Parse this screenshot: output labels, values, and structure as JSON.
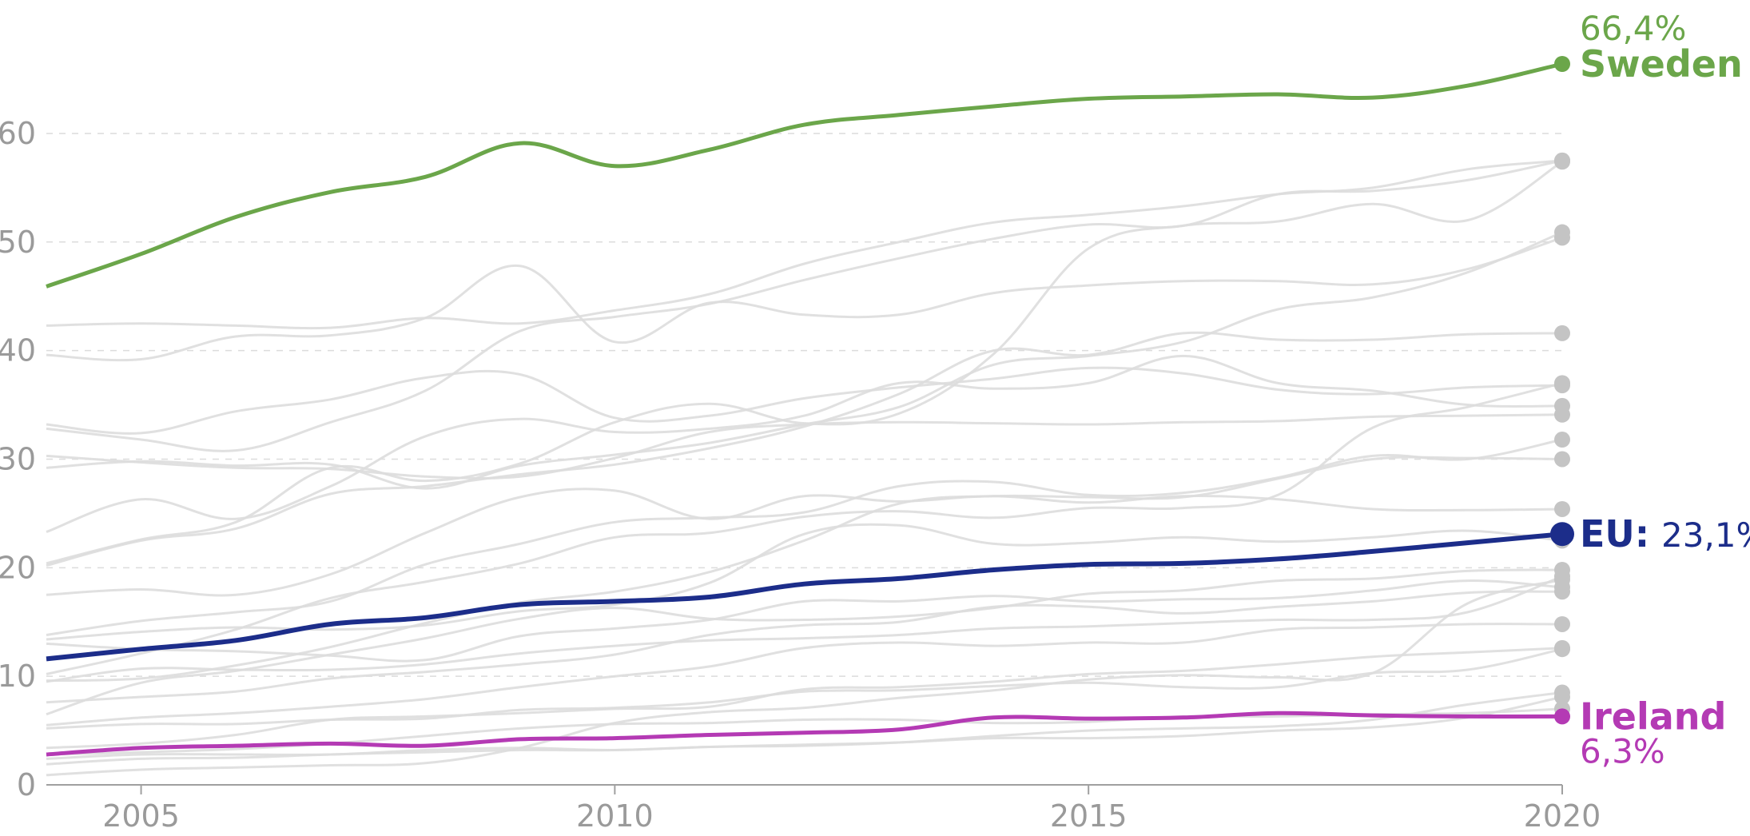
{
  "chart_data": {
    "type": "line",
    "title": "",
    "xlabel": "",
    "ylabel": "",
    "xlim": [
      2004,
      2020
    ],
    "ylim": [
      0,
      66.4
    ],
    "x_ticks": [
      2005,
      2010,
      2015,
      2020
    ],
    "x_tick_labels": [
      "2005",
      "2010",
      "2015",
      "2020"
    ],
    "y_ticks": [
      0,
      10,
      20,
      30,
      40,
      50,
      60
    ],
    "y_tick_labels": [
      "0",
      "10",
      "20",
      "30",
      "40",
      "50",
      "60"
    ],
    "grid": true,
    "years": [
      2004,
      2005,
      2006,
      2007,
      2008,
      2009,
      2010,
      2011,
      2012,
      2013,
      2014,
      2015,
      2016,
      2017,
      2018,
      2019,
      2020
    ],
    "highlight_series": [
      {
        "name": "Sweden",
        "color": "#6ba64a",
        "label": "Sweden",
        "value_label": "66,4%",
        "values": [
          45.9,
          48.9,
          52.3,
          54.6,
          56.0,
          59.1,
          57.0,
          58.5,
          60.8,
          61.7,
          62.5,
          63.2,
          63.4,
          63.6,
          63.3,
          64.4,
          66.4
        ]
      },
      {
        "name": "EU",
        "color": "#1c2d8a",
        "label": "EU:",
        "value_label": "23,1%",
        "values": [
          11.6,
          12.5,
          13.3,
          14.8,
          15.4,
          16.6,
          16.9,
          17.3,
          18.5,
          19.0,
          19.8,
          20.3,
          20.4,
          20.8,
          21.5,
          22.3,
          23.1
        ]
      },
      {
        "name": "Ireland",
        "color": "#b43ab4",
        "label": "Ireland",
        "value_label": "6,3%",
        "values": [
          2.8,
          3.4,
          3.6,
          3.8,
          3.6,
          4.2,
          4.3,
          4.6,
          4.8,
          5.1,
          6.2,
          6.1,
          6.2,
          6.6,
          6.4,
          6.3,
          6.3
        ]
      }
    ],
    "background_series": [
      {
        "values": [
          39.6,
          39.2,
          41.3,
          41.4,
          43.0,
          47.8,
          40.8,
          44.4,
          43.3,
          43.3,
          45.3,
          46.0,
          46.4,
          46.4,
          46.1,
          47.5,
          50.4
        ]
      },
      {
        "values": [
          42.3,
          42.5,
          42.3,
          42.1,
          43.0,
          42.5,
          43.7,
          45.2,
          48.0,
          50.0,
          51.8,
          52.5,
          53.3,
          54.4,
          55.0,
          56.7,
          57.5
        ]
      },
      {
        "values": [
          29.2,
          29.8,
          29.4,
          29.5,
          27.3,
          29.4,
          30.4,
          31.5,
          33.2,
          34.8,
          38.7,
          39.5,
          40.8,
          43.8,
          44.9,
          47.2,
          50.9
        ]
      },
      {
        "values": [
          20.4,
          22.6,
          24.2,
          29.2,
          28.0,
          29.6,
          33.4,
          35.1,
          33.3,
          34.2,
          39.7,
          49.4,
          51.5,
          51.9,
          53.5,
          52.0,
          57.4
        ]
      },
      {
        "values": [
          32.8,
          31.8,
          30.8,
          33.4,
          36.3,
          41.8,
          43.1,
          44.3,
          46.5,
          48.5,
          50.3,
          51.6,
          51.5,
          54.4,
          54.7,
          55.7,
          57.5
        ]
      },
      {
        "values": [
          33.2,
          32.4,
          34.4,
          35.5,
          37.5,
          37.8,
          33.8,
          34.0,
          35.6,
          36.6,
          37.4,
          38.4,
          37.9,
          36.4,
          36.0,
          36.6,
          36.8
        ]
      },
      {
        "values": [
          30.3,
          29.7,
          29.2,
          29.1,
          28.4,
          28.4,
          30.1,
          32.5,
          33.2,
          33.4,
          33.3,
          33.2,
          33.4,
          33.5,
          33.9,
          34.0,
          34.1
        ]
      },
      {
        "values": [
          23.3,
          26.3,
          24.5,
          27.5,
          32.1,
          33.7,
          32.5,
          32.8,
          34.0,
          37.0,
          36.5,
          37.0,
          39.5,
          37.0,
          36.3,
          35.0,
          34.9
        ]
      },
      {
        "values": [
          20.2,
          22.5,
          23.6,
          26.8,
          27.5,
          28.6,
          29.5,
          31.0,
          33.0,
          36.0,
          40.0,
          39.6,
          41.6,
          41.0,
          41.0,
          41.5,
          41.6
        ]
      },
      {
        "values": [
          17.5,
          18.0,
          17.5,
          19.4,
          23.2,
          26.5,
          27.1,
          24.5,
          26.6,
          26.1,
          26.6,
          26.0,
          26.6,
          26.3,
          25.4,
          25.3,
          25.4
        ]
      },
      {
        "values": [
          13.8,
          15.1,
          15.9,
          16.9,
          20.3,
          22.2,
          24.2,
          24.6,
          25.1,
          27.5,
          27.9,
          26.7,
          26.9,
          28.3,
          30.3,
          30.0,
          31.8
        ]
      },
      {
        "values": [
          10.2,
          12.1,
          14.3,
          17.2,
          18.7,
          20.4,
          22.8,
          23.2,
          24.7,
          25.2,
          24.6,
          25.5,
          25.5,
          26.7,
          32.9,
          34.8,
          37.0
        ]
      },
      {
        "values": [
          13.4,
          14.1,
          14.5,
          14.3,
          14.7,
          16.0,
          16.6,
          18.6,
          23.1,
          23.9,
          22.2,
          22.3,
          22.8,
          22.4,
          22.8,
          23.4,
          22.5
        ]
      },
      {
        "values": [
          6.5,
          9.4,
          10.5,
          12.0,
          13.5,
          15.3,
          16.3,
          15.3,
          15.2,
          15.5,
          16.3,
          17.6,
          17.9,
          18.8,
          19.0,
          19.7,
          19.8
        ]
      },
      {
        "values": [
          9.5,
          10.7,
          10.6,
          10.6,
          11.1,
          12.1,
          12.8,
          13.3,
          13.5,
          13.8,
          14.4,
          14.6,
          14.9,
          15.2,
          15.2,
          15.9,
          19.2
        ]
      },
      {
        "values": [
          9.6,
          9.8,
          11.0,
          12.7,
          14.9,
          16.8,
          17.8,
          19.6,
          22.5,
          25.9,
          26.6,
          26.5,
          26.5,
          28.2,
          30.0,
          30.1,
          30.0
        ]
      },
      {
        "values": [
          7.6,
          8.1,
          8.6,
          9.8,
          10.4,
          11.1,
          12.0,
          13.8,
          14.7,
          15.0,
          16.4,
          16.4,
          15.8,
          16.4,
          16.9,
          17.7,
          17.8
        ]
      },
      {
        "values": [
          5.5,
          6.2,
          6.6,
          7.2,
          7.9,
          9.0,
          10.0,
          10.9,
          12.6,
          13.1,
          12.8,
          13.1,
          13.1,
          14.3,
          14.5,
          14.8,
          14.8
        ]
      },
      {
        "values": [
          13.0,
          12.5,
          12.3,
          11.9,
          11.5,
          13.7,
          14.4,
          15.2,
          16.9,
          16.9,
          17.4,
          16.9,
          17.1,
          17.2,
          17.9,
          18.8,
          18.2
        ]
      },
      {
        "values": [
          5.2,
          5.6,
          5.6,
          6.0,
          6.1,
          6.9,
          7.1,
          7.6,
          8.6,
          8.7,
          9.1,
          9.4,
          9.0,
          9.0,
          10.3,
          10.6,
          12.5
        ]
      },
      {
        "values": [
          0.9,
          1.4,
          1.6,
          1.8,
          2.0,
          3.4,
          5.7,
          6.7,
          7.1,
          8.0,
          8.7,
          9.7,
          10.1,
          9.9,
          10.3,
          16.7,
          18.9
        ]
      },
      {
        "values": [
          3.4,
          3.8,
          4.6,
          6.0,
          6.3,
          6.6,
          7.0,
          7.2,
          8.8,
          9.0,
          9.5,
          10.2,
          10.5,
          11.1,
          11.8,
          12.2,
          12.6
        ]
      },
      {
        "values": [
          2.8,
          3.0,
          3.3,
          3.8,
          4.5,
          5.2,
          5.6,
          5.7,
          6.0,
          6.0,
          5.7,
          5.8,
          6.3,
          6.3,
          6.5,
          6.6,
          7.0
        ]
      },
      {
        "values": [
          2.4,
          2.8,
          2.8,
          2.8,
          3.2,
          3.4,
          3.2,
          3.5,
          3.6,
          3.9,
          4.5,
          5.0,
          5.2,
          5.4,
          6.0,
          7.4,
          8.5
        ]
      },
      {
        "values": [
          1.9,
          2.4,
          2.5,
          2.8,
          3.0,
          3.2,
          3.2,
          3.5,
          3.7,
          3.9,
          4.3,
          4.3,
          4.5,
          5.0,
          5.3,
          6.2,
          8.1
        ]
      }
    ]
  }
}
